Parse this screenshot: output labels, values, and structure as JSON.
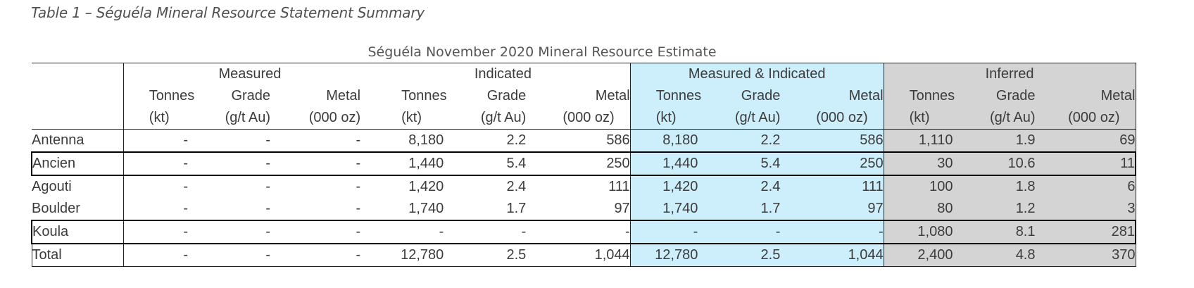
{
  "caption": "Table 1 – Séguéla Mineral Resource Statement Summary",
  "table_title": "Séguéla November 2020 Mineral Resource Estimate",
  "groups": {
    "measured": "Measured",
    "indicated": "Indicated",
    "mi": "Measured & Indicated",
    "inferred": "Inferred"
  },
  "units": {
    "tonnes": "Tonnes",
    "grade": "Grade",
    "metal": "Metal",
    "tonnes_unit": "(kt)",
    "grade_unit": "(g/t Au)",
    "metal_unit": "(000 oz)"
  },
  "colors": {
    "measured_indicated_fill": "#cdeefb",
    "inferred_fill": "#d4d4d4"
  },
  "rows": [
    {
      "name": "Antenna",
      "values": [
        "-",
        "-",
        "-",
        "8,180",
        "2.2",
        "586",
        "8,180",
        "2.2",
        "586",
        "1,110",
        "1.9",
        "69"
      ]
    },
    {
      "name": "Ancien",
      "values": [
        "-",
        "-",
        "-",
        "1,440",
        "5.4",
        "250",
        "1,440",
        "5.4",
        "250",
        "30",
        "10.6",
        "11"
      ]
    },
    {
      "name": "Agouti",
      "values": [
        "-",
        "-",
        "-",
        "1,420",
        "2.4",
        "111",
        "1,420",
        "2.4",
        "111",
        "100",
        "1.8",
        "6"
      ]
    },
    {
      "name": "Boulder",
      "values": [
        "-",
        "-",
        "-",
        "1,740",
        "1.7",
        "97",
        "1,740",
        "1.7",
        "97",
        "80",
        "1.2",
        "3"
      ]
    },
    {
      "name": "Koula",
      "values": [
        "-",
        "-",
        "-",
        "-",
        "-",
        "-",
        "-",
        "-",
        "-",
        "1,080",
        "8.1",
        "281"
      ]
    },
    {
      "name": "Total",
      "values": [
        "-",
        "-",
        "-",
        "12,780",
        "2.5",
        "1,044",
        "12,780",
        "2.5",
        "1,044",
        "2,400",
        "4.8",
        "370"
      ]
    }
  ]
}
